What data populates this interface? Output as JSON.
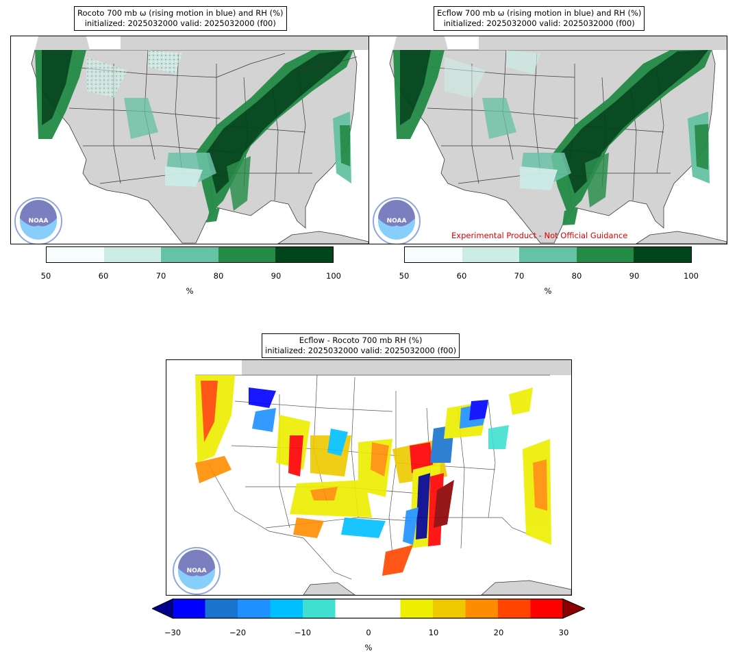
{
  "panels": [
    {
      "id": "rocoto",
      "title_line1": "Rocoto 700 mb ω (rising motion in blue) and RH (%)",
      "title_line2": "initialized: 2025032000 valid: 2025032000 (f00)",
      "logo_text": "NOAA"
    },
    {
      "id": "ecflow",
      "title_line1": "Ecflow 700 mb ω (rising motion in blue) and RH (%)",
      "title_line2": "initialized: 2025032000 valid: 2025032000 (f00)",
      "logo_text": "NOAA",
      "disclaimer": "Experimental Product - Not Official Guidance"
    },
    {
      "id": "diff",
      "title_line1": "Ecflow - Rocoto 700 mb RH (%)",
      "title_line2": "initialized: 2025032000 valid: 2025032000 (f00)",
      "logo_text": "NOAA"
    }
  ],
  "rh_colorbar": {
    "ticks": [
      "50",
      "60",
      "70",
      "80",
      "90",
      "100"
    ],
    "unit": "%",
    "colors": [
      "#f7fcfd",
      "#ccece6",
      "#66c2a4",
      "#238b45",
      "#00441b"
    ]
  },
  "diff_colorbar": {
    "ticks": [
      "−30",
      "−20",
      "−10",
      "0",
      "10",
      "20",
      "30"
    ],
    "unit": "%",
    "colors": [
      "#0000ff",
      "#1874cd",
      "#1e90ff",
      "#00bfff",
      "#40e0d0",
      "#ffffff",
      "#ffffff",
      "#eeee00",
      "#eec900",
      "#ff8c00",
      "#ff4500",
      "#ff0000"
    ],
    "under_color": "#00008b",
    "over_color": "#8b0000"
  },
  "colors": {
    "land": "#d3d3d3",
    "border": "#333333"
  }
}
